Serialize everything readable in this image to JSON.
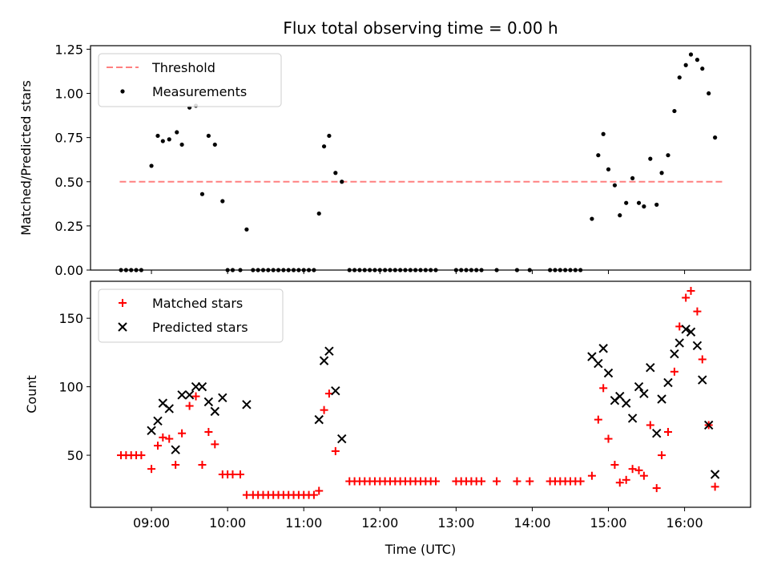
{
  "chart_data": [
    {
      "type": "scatter",
      "title": "Flux total observing time = 0.00 h",
      "xlabel": "",
      "ylabel": "Matched/Predicted stars",
      "xlim": [
        "08:12",
        "16:52"
      ],
      "ylim": [
        0,
        1.27
      ],
      "yticks": [
        0.0,
        0.25,
        0.5,
        0.75,
        1.0,
        1.25
      ],
      "ytick_labels": [
        "0.00",
        "0.25",
        "0.50",
        "0.75",
        "1.00",
        "1.25"
      ],
      "xticks": [
        "09:00",
        "10:00",
        "11:00",
        "12:00",
        "13:00",
        "14:00",
        "15:00",
        "16:00"
      ],
      "legend": {
        "placement": "top-left",
        "entries": [
          "Threshold",
          "Measurements"
        ]
      },
      "threshold": {
        "name": "Threshold",
        "value": 0.5,
        "x": [
          "08:35",
          "16:30"
        ],
        "color": "#ff8080",
        "style": "dashed"
      },
      "series": [
        {
          "name": "Measurements",
          "color": "#000000",
          "marker": "dot",
          "points": [
            [
              "08:36",
              0
            ],
            [
              "08:40",
              0
            ],
            [
              "08:44",
              0
            ],
            [
              "08:48",
              0
            ],
            [
              "08:52",
              0
            ],
            [
              "09:00",
              0.59
            ],
            [
              "09:05",
              0.76
            ],
            [
              "09:09",
              0.73
            ],
            [
              "09:14",
              0.74
            ],
            [
              "09:20",
              0.78
            ],
            [
              "09:24",
              0.71
            ],
            [
              "09:30",
              0.92
            ],
            [
              "09:35",
              0.93
            ],
            [
              "09:40",
              0.43
            ],
            [
              "09:45",
              0.76
            ],
            [
              "09:50",
              0.71
            ],
            [
              "09:56",
              0.39
            ],
            [
              "10:00",
              0
            ],
            [
              "10:04",
              0
            ],
            [
              "10:10",
              0
            ],
            [
              "10:15",
              0.23
            ],
            [
              "10:20",
              0
            ],
            [
              "10:24",
              0
            ],
            [
              "10:28",
              0
            ],
            [
              "10:32",
              0
            ],
            [
              "10:36",
              0
            ],
            [
              "10:40",
              0
            ],
            [
              "10:44",
              0
            ],
            [
              "10:48",
              0
            ],
            [
              "10:52",
              0
            ],
            [
              "10:56",
              0
            ],
            [
              "11:00",
              0
            ],
            [
              "11:04",
              0
            ],
            [
              "11:08",
              0
            ],
            [
              "11:12",
              0.32
            ],
            [
              "11:16",
              0.7
            ],
            [
              "11:20",
              0.76
            ],
            [
              "11:25",
              0.55
            ],
            [
              "11:30",
              0.5
            ],
            [
              "11:36",
              0
            ],
            [
              "11:40",
              0
            ],
            [
              "11:44",
              0
            ],
            [
              "11:48",
              0
            ],
            [
              "11:52",
              0
            ],
            [
              "11:56",
              0
            ],
            [
              "12:00",
              0
            ],
            [
              "12:04",
              0
            ],
            [
              "12:08",
              0
            ],
            [
              "12:12",
              0
            ],
            [
              "12:16",
              0
            ],
            [
              "12:20",
              0
            ],
            [
              "12:24",
              0
            ],
            [
              "12:28",
              0
            ],
            [
              "12:32",
              0
            ],
            [
              "12:36",
              0
            ],
            [
              "12:40",
              0
            ],
            [
              "12:44",
              0
            ],
            [
              "13:00",
              0
            ],
            [
              "13:04",
              0
            ],
            [
              "13:08",
              0
            ],
            [
              "13:12",
              0
            ],
            [
              "13:16",
              0
            ],
            [
              "13:20",
              0
            ],
            [
              "13:32",
              0
            ],
            [
              "13:48",
              0
            ],
            [
              "13:58",
              0
            ],
            [
              "14:14",
              0
            ],
            [
              "14:18",
              0
            ],
            [
              "14:22",
              0
            ],
            [
              "14:26",
              0
            ],
            [
              "14:30",
              0
            ],
            [
              "14:34",
              0
            ],
            [
              "14:38",
              0
            ],
            [
              "14:47",
              0.29
            ],
            [
              "14:52",
              0.65
            ],
            [
              "14:56",
              0.77
            ],
            [
              "15:00",
              0.57
            ],
            [
              "15:05",
              0.48
            ],
            [
              "15:09",
              0.31
            ],
            [
              "15:14",
              0.38
            ],
            [
              "15:19",
              0.52
            ],
            [
              "15:24",
              0.38
            ],
            [
              "15:28",
              0.36
            ],
            [
              "15:33",
              0.63
            ],
            [
              "15:38",
              0.37
            ],
            [
              "15:42",
              0.55
            ],
            [
              "15:47",
              0.65
            ],
            [
              "15:52",
              0.9
            ],
            [
              "15:56",
              1.09
            ],
            [
              "16:01",
              1.16
            ],
            [
              "16:05",
              1.22
            ],
            [
              "16:10",
              1.19
            ],
            [
              "16:14",
              1.14
            ],
            [
              "16:19",
              1.0
            ],
            [
              "16:24",
              0.75
            ]
          ]
        }
      ]
    },
    {
      "type": "scatter",
      "title": "",
      "xlabel": "Time (UTC)",
      "ylabel": "Count",
      "xlim": [
        "08:12",
        "16:52"
      ],
      "ylim": [
        12,
        177
      ],
      "yticks": [
        50,
        100,
        150
      ],
      "ytick_labels": [
        "50",
        "100",
        "150"
      ],
      "xticks": [
        "09:00",
        "10:00",
        "11:00",
        "12:00",
        "13:00",
        "14:00",
        "15:00",
        "16:00"
      ],
      "legend": {
        "placement": "top-left",
        "entries": [
          "Matched stars",
          "Predicted stars"
        ]
      },
      "series": [
        {
          "name": "Matched stars",
          "color": "#ff0000",
          "marker": "plus",
          "points": [
            [
              "08:36",
              50
            ],
            [
              "08:40",
              50
            ],
            [
              "08:44",
              50
            ],
            [
              "08:48",
              50
            ],
            [
              "08:52",
              50
            ],
            [
              "09:00",
              40
            ],
            [
              "09:05",
              57
            ],
            [
              "09:09",
              63
            ],
            [
              "09:14",
              62
            ],
            [
              "09:19",
              43
            ],
            [
              "09:24",
              66
            ],
            [
              "09:30",
              86
            ],
            [
              "09:35",
              93
            ],
            [
              "09:40",
              43
            ],
            [
              "09:45",
              67
            ],
            [
              "09:50",
              58
            ],
            [
              "09:56",
              36
            ],
            [
              "10:00",
              36
            ],
            [
              "10:04",
              36
            ],
            [
              "10:10",
              36
            ],
            [
              "10:15",
              21
            ],
            [
              "10:20",
              21
            ],
            [
              "10:24",
              21
            ],
            [
              "10:28",
              21
            ],
            [
              "10:32",
              21
            ],
            [
              "10:36",
              21
            ],
            [
              "10:40",
              21
            ],
            [
              "10:44",
              21
            ],
            [
              "10:48",
              21
            ],
            [
              "10:52",
              21
            ],
            [
              "10:56",
              21
            ],
            [
              "11:00",
              21
            ],
            [
              "11:04",
              21
            ],
            [
              "11:08",
              21
            ],
            [
              "11:12",
              24
            ],
            [
              "11:16",
              83
            ],
            [
              "11:20",
              95
            ],
            [
              "11:25",
              53
            ],
            [
              "11:36",
              31
            ],
            [
              "11:40",
              31
            ],
            [
              "11:44",
              31
            ],
            [
              "11:48",
              31
            ],
            [
              "11:52",
              31
            ],
            [
              "11:56",
              31
            ],
            [
              "12:00",
              31
            ],
            [
              "12:04",
              31
            ],
            [
              "12:08",
              31
            ],
            [
              "12:12",
              31
            ],
            [
              "12:16",
              31
            ],
            [
              "12:20",
              31
            ],
            [
              "12:24",
              31
            ],
            [
              "12:28",
              31
            ],
            [
              "12:32",
              31
            ],
            [
              "12:36",
              31
            ],
            [
              "12:40",
              31
            ],
            [
              "12:44",
              31
            ],
            [
              "13:00",
              31
            ],
            [
              "13:04",
              31
            ],
            [
              "13:08",
              31
            ],
            [
              "13:12",
              31
            ],
            [
              "13:16",
              31
            ],
            [
              "13:20",
              31
            ],
            [
              "13:32",
              31
            ],
            [
              "13:48",
              31
            ],
            [
              "13:58",
              31
            ],
            [
              "14:14",
              31
            ],
            [
              "14:18",
              31
            ],
            [
              "14:22",
              31
            ],
            [
              "14:26",
              31
            ],
            [
              "14:30",
              31
            ],
            [
              "14:34",
              31
            ],
            [
              "14:38",
              31
            ],
            [
              "14:47",
              35
            ],
            [
              "14:52",
              76
            ],
            [
              "14:56",
              99
            ],
            [
              "15:00",
              62
            ],
            [
              "15:05",
              43
            ],
            [
              "15:09",
              30
            ],
            [
              "15:14",
              32
            ],
            [
              "15:19",
              40
            ],
            [
              "15:24",
              39
            ],
            [
              "15:28",
              35
            ],
            [
              "15:33",
              72
            ],
            [
              "15:38",
              26
            ],
            [
              "15:42",
              50
            ],
            [
              "15:47",
              67
            ],
            [
              "15:52",
              111
            ],
            [
              "15:56",
              144
            ],
            [
              "16:01",
              165
            ],
            [
              "16:05",
              170
            ],
            [
              "16:10",
              155
            ],
            [
              "16:14",
              120
            ],
            [
              "16:19",
              72
            ],
            [
              "16:24",
              27
            ]
          ]
        },
        {
          "name": "Predicted stars",
          "color": "#000000",
          "marker": "x",
          "points": [
            [
              "09:00",
              68
            ],
            [
              "09:05",
              75
            ],
            [
              "09:09",
              88
            ],
            [
              "09:14",
              84
            ],
            [
              "09:19",
              54
            ],
            [
              "09:24",
              94
            ],
            [
              "09:30",
              94
            ],
            [
              "09:35",
              100
            ],
            [
              "09:40",
              100
            ],
            [
              "09:45",
              89
            ],
            [
              "09:50",
              82
            ],
            [
              "09:56",
              92
            ],
            [
              "10:15",
              87
            ],
            [
              "11:12",
              76
            ],
            [
              "11:16",
              119
            ],
            [
              "11:20",
              126
            ],
            [
              "11:25",
              97
            ],
            [
              "11:30",
              62
            ],
            [
              "14:47",
              122
            ],
            [
              "14:52",
              117
            ],
            [
              "14:56",
              128
            ],
            [
              "15:00",
              110
            ],
            [
              "15:05",
              90
            ],
            [
              "15:09",
              93
            ],
            [
              "15:14",
              88
            ],
            [
              "15:19",
              77
            ],
            [
              "15:24",
              100
            ],
            [
              "15:28",
              95
            ],
            [
              "15:33",
              114
            ],
            [
              "15:38",
              66
            ],
            [
              "15:42",
              91
            ],
            [
              "15:47",
              103
            ],
            [
              "15:52",
              124
            ],
            [
              "15:56",
              132
            ],
            [
              "16:01",
              142
            ],
            [
              "16:05",
              140
            ],
            [
              "16:10",
              130
            ],
            [
              "16:14",
              105
            ],
            [
              "16:19",
              72
            ],
            [
              "16:24",
              36
            ]
          ]
        }
      ]
    }
  ]
}
